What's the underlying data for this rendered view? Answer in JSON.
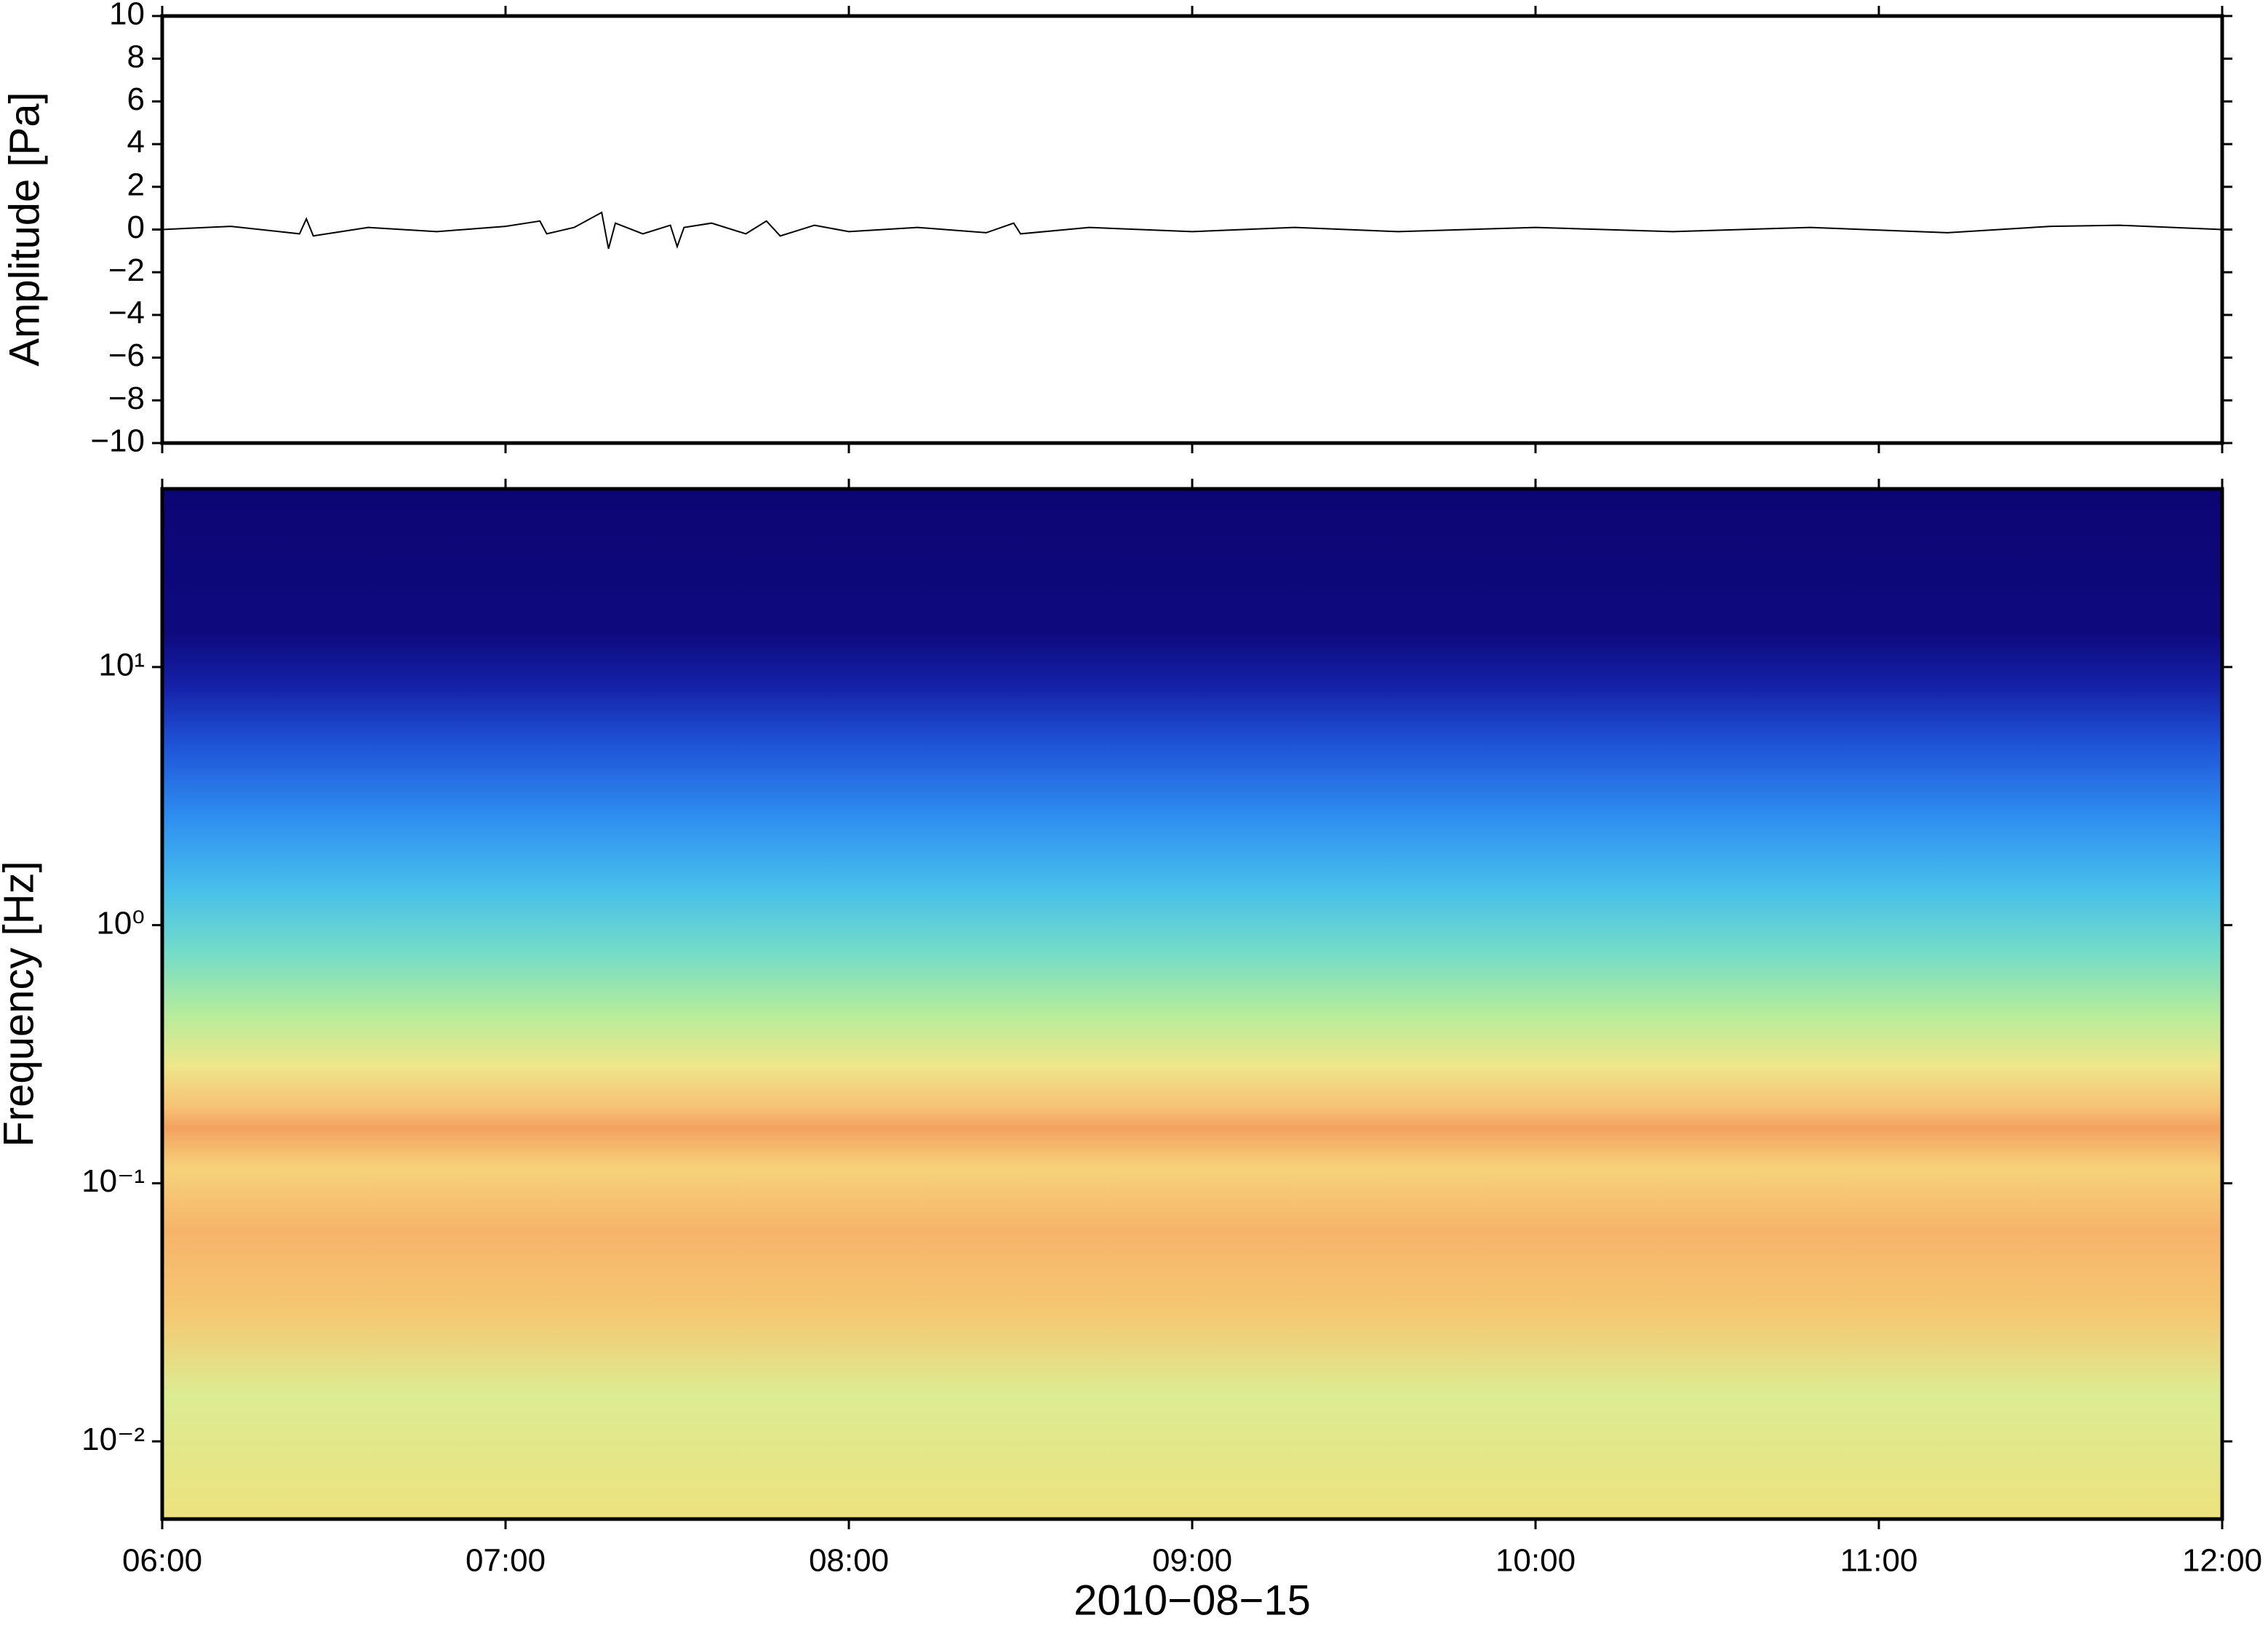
{
  "chart_data": [
    {
      "type": "line",
      "ylabel": "Amplitude [Pa]",
      "xlim": [
        6,
        12
      ],
      "ylim": [
        -10,
        10
      ],
      "yticks": [
        {
          "value": 10,
          "label": "10"
        },
        {
          "value": 8,
          "label": "8"
        },
        {
          "value": 6,
          "label": "6"
        },
        {
          "value": 4,
          "label": "4"
        },
        {
          "value": 2,
          "label": "2"
        },
        {
          "value": 0,
          "label": "0"
        },
        {
          "value": -2,
          "label": "−2"
        },
        {
          "value": -4,
          "label": "−4"
        },
        {
          "value": -6,
          "label": "−6"
        },
        {
          "value": -8,
          "label": "−8"
        },
        {
          "value": -10,
          "label": "−10"
        }
      ],
      "xticks": [
        6,
        7,
        8,
        9,
        10,
        11,
        12
      ],
      "color": "#000000",
      "x": [
        6.0,
        6.2,
        6.4,
        6.42,
        6.44,
        6.6,
        6.8,
        7.0,
        7.1,
        7.12,
        7.2,
        7.28,
        7.3,
        7.32,
        7.4,
        7.48,
        7.5,
        7.52,
        7.6,
        7.7,
        7.76,
        7.8,
        7.9,
        8.0,
        8.2,
        8.4,
        8.48,
        8.5,
        8.7,
        9.0,
        9.3,
        9.6,
        10.0,
        10.4,
        10.8,
        11.2,
        11.5,
        11.7,
        12.0
      ],
      "values": [
        0.0,
        0.15,
        -0.2,
        0.5,
        -0.3,
        0.1,
        -0.1,
        0.15,
        0.4,
        -0.2,
        0.1,
        0.8,
        -0.9,
        0.3,
        -0.2,
        0.2,
        -0.8,
        0.1,
        0.3,
        -0.2,
        0.4,
        -0.3,
        0.2,
        -0.1,
        0.1,
        -0.15,
        0.3,
        -0.2,
        0.1,
        -0.1,
        0.1,
        -0.1,
        0.1,
        -0.1,
        0.1,
        -0.15,
        0.15,
        0.2,
        0.0
      ]
    },
    {
      "type": "spectrogram",
      "ylabel": "Frequency [Hz]",
      "xlabel": "2010−08−15",
      "log_y": true,
      "xlim": [
        6,
        12
      ],
      "ylim": [
        0.005,
        49
      ],
      "yticks": [
        {
          "value": 0.01,
          "label": "10⁻²"
        },
        {
          "value": 0.1,
          "label": "10⁻¹"
        },
        {
          "value": 1,
          "label": "10⁰"
        },
        {
          "value": 10,
          "label": "10¹"
        }
      ],
      "xticks": [
        {
          "value": 6,
          "label": "06:00"
        },
        {
          "value": 7,
          "label": "07:00"
        },
        {
          "value": 8,
          "label": "08:00"
        },
        {
          "value": 9,
          "label": "09:00"
        },
        {
          "value": 10,
          "label": "10:00"
        },
        {
          "value": 11,
          "label": "11:00"
        },
        {
          "value": 12,
          "label": "12:00"
        }
      ]
    }
  ]
}
